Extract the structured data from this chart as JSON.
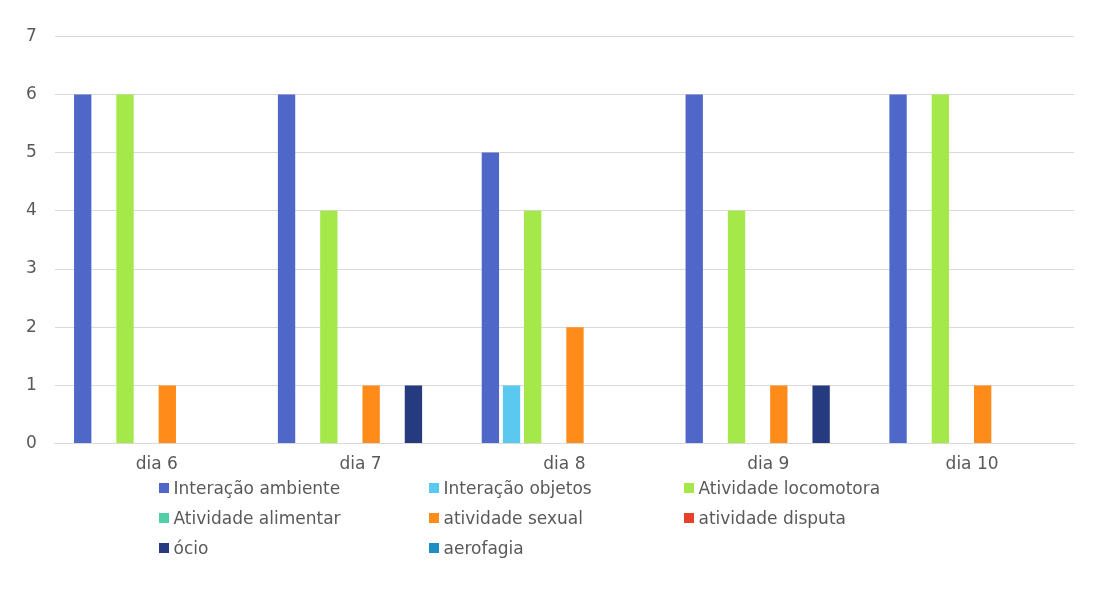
{
  "chart_data": {
    "type": "bar",
    "categories": [
      "dia 6",
      "dia 7",
      "dia 8",
      "dia 9",
      "dia 10"
    ],
    "series": [
      {
        "name": "Interação ambiente",
        "color": "#4f67c8",
        "values": [
          6,
          6,
          5,
          6,
          6
        ]
      },
      {
        "name": "Interação objetos",
        "color": "#5bc8f0",
        "values": [
          0,
          0,
          1,
          0,
          0
        ]
      },
      {
        "name": "Atividade locomotora",
        "color": "#a5e84a",
        "values": [
          6,
          4,
          4,
          4,
          6
        ]
      },
      {
        "name": "Atividade alimentar",
        "color": "#4fd0a8",
        "values": [
          0,
          0,
          0,
          0,
          0
        ]
      },
      {
        "name": "atividade sexual",
        "color": "#ff8c1a",
        "values": [
          1,
          1,
          2,
          1,
          1
        ]
      },
      {
        "name": "atividade disputa",
        "color": "#e8402a",
        "values": [
          0,
          0,
          0,
          0,
          0
        ]
      },
      {
        "name": "ócio",
        "color": "#263a80",
        "values": [
          0,
          1,
          0,
          1,
          0
        ]
      },
      {
        "name": "aerofagia",
        "color": "#1a8fc0",
        "values": [
          0,
          0,
          0,
          0,
          0
        ]
      }
    ],
    "ylim": [
      0,
      7
    ],
    "yticks": [
      0,
      1,
      2,
      3,
      4,
      5,
      6,
      7
    ],
    "grid": "y",
    "legend": "bottom"
  }
}
